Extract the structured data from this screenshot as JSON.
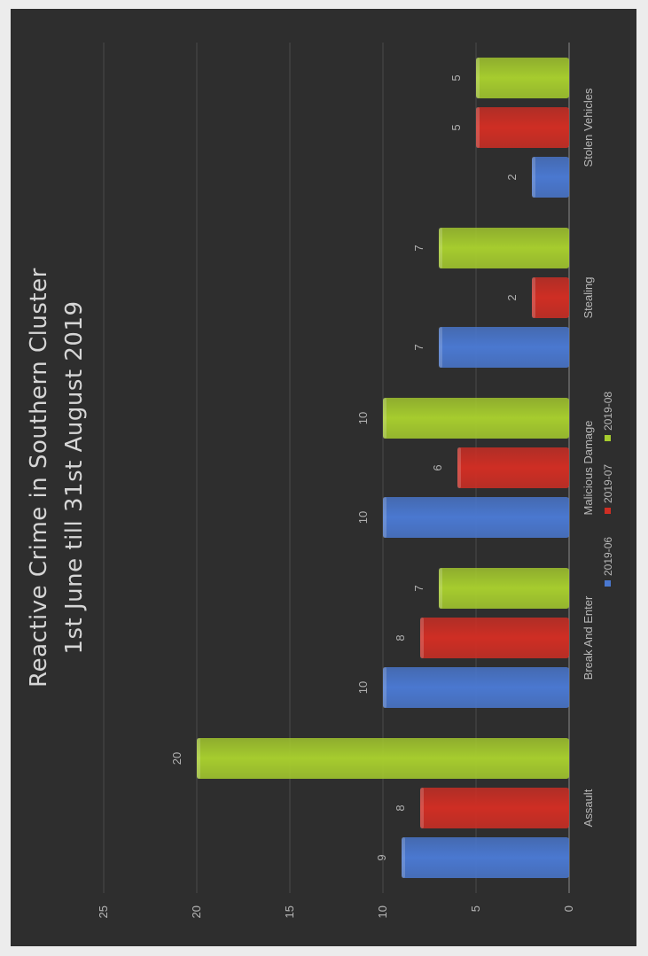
{
  "chart_data": {
    "type": "bar",
    "title": "Reactive Crime in Southern Cluster",
    "subtitle": "1st June till 31st August 2019",
    "categories": [
      "Assault",
      "Break And Enter",
      "Malicious Damage",
      "Stealing",
      "Stolen Vehicles"
    ],
    "series": [
      {
        "name": "2019-06",
        "values": [
          9,
          10,
          10,
          7,
          2
        ],
        "color": "#4a78d0"
      },
      {
        "name": "2019-07",
        "values": [
          8,
          8,
          6,
          2,
          5
        ],
        "color": "#cf2e24"
      },
      {
        "name": "2019-08",
        "values": [
          20,
          7,
          10,
          7,
          5
        ],
        "color": "#a6cc2e"
      }
    ],
    "yticks": [
      "0",
      "5",
      "10",
      "15",
      "20",
      "25"
    ],
    "ylim": [
      0,
      25
    ],
    "grid": true,
    "legend": "bottom",
    "orientation": "rotated 90° counter-clockwise",
    "background": "#2e2e2e"
  }
}
